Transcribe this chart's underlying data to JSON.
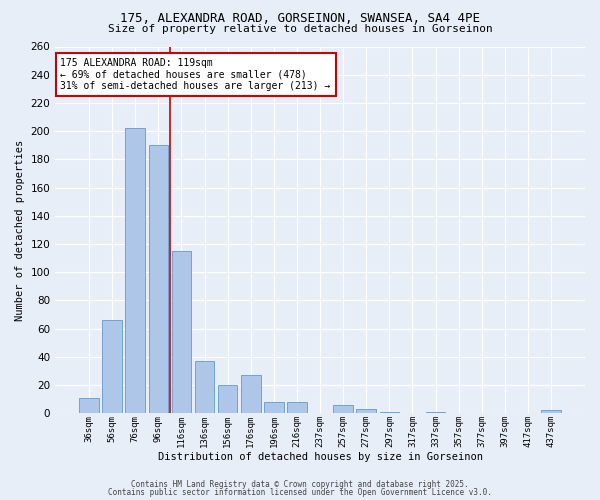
{
  "title_line1": "175, ALEXANDRA ROAD, GORSEINON, SWANSEA, SA4 4PE",
  "title_line2": "Size of property relative to detached houses in Gorseinon",
  "xlabel": "Distribution of detached houses by size in Gorseinon",
  "ylabel": "Number of detached properties",
  "categories": [
    "36sqm",
    "56sqm",
    "76sqm",
    "96sqm",
    "116sqm",
    "136sqm",
    "156sqm",
    "176sqm",
    "196sqm",
    "216sqm",
    "237sqm",
    "257sqm",
    "277sqm",
    "297sqm",
    "317sqm",
    "337sqm",
    "357sqm",
    "377sqm",
    "397sqm",
    "417sqm",
    "437sqm"
  ],
  "values": [
    11,
    66,
    202,
    190,
    115,
    37,
    20,
    27,
    8,
    8,
    0,
    6,
    3,
    1,
    0,
    1,
    0,
    0,
    0,
    0,
    2
  ],
  "bar_color": "#aec6e8",
  "bar_edge_color": "#5b9bd5",
  "vline_pos": 4.5,
  "vline_color": "#cc0000",
  "annotation_text": "175 ALEXANDRA ROAD: 119sqm\n← 69% of detached houses are smaller (478)\n31% of semi-detached houses are larger (213) →",
  "annotation_box_color": "#ffffff",
  "annotation_box_edge": "#cc0000",
  "ylim": [
    0,
    260
  ],
  "yticks": [
    0,
    20,
    40,
    60,
    80,
    100,
    120,
    140,
    160,
    180,
    200,
    220,
    240,
    260
  ],
  "background_color": "#e8eef8",
  "grid_color": "#ffffff",
  "footnote_line1": "Contains HM Land Registry data © Crown copyright and database right 2025.",
  "footnote_line2": "Contains public sector information licensed under the Open Government Licence v3.0."
}
